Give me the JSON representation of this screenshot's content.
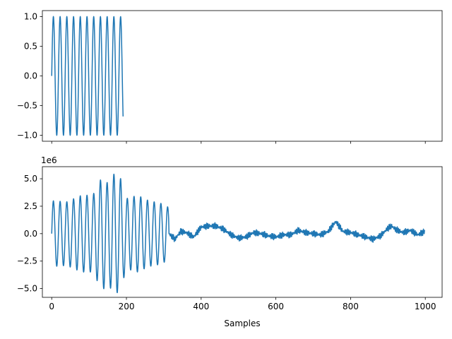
{
  "chart_data": [
    {
      "type": "line",
      "title": "",
      "xlabel": "",
      "ylabel": "",
      "xlim": [
        -25,
        1045
      ],
      "ylim": [
        -1.1,
        1.1
      ],
      "xticks": [
        0,
        200,
        400,
        600,
        800,
        1000
      ],
      "show_xtick_labels": false,
      "yticks": [
        -1.0,
        -0.5,
        0.0,
        0.5,
        1.0
      ],
      "ytick_labels": [
        "−1.0",
        "−0.5",
        "0.0",
        "0.5",
        "1.0"
      ],
      "grid": false,
      "color": "#1f77b4",
      "series": [
        {
          "signal": "sin(2*pi*0.0556*n)",
          "frequency_cycles_per_sample": 0.0556,
          "n_start": 0,
          "n_end": 191,
          "amplitude": 1.0
        }
      ]
    },
    {
      "type": "line",
      "title": "",
      "xlabel": "Samples",
      "ylabel": "",
      "offset_label": "1e6",
      "xlim": [
        -25,
        1045
      ],
      "ylim": [
        -5.8,
        6.1
      ],
      "xticks": [
        0,
        200,
        400,
        600,
        800,
        1000
      ],
      "xtick_labels": [
        "0",
        "200",
        "400",
        "600",
        "800",
        "1000"
      ],
      "yticks": [
        -5.0,
        -2.5,
        0.0,
        2.5,
        5.0
      ],
      "ytick_labels": [
        "−5.0",
        "−2.5",
        "0.0",
        "2.5",
        "5.0"
      ],
      "grid": false,
      "color": "#1f77b4",
      "series": [
        {
          "oscillation_frequency_cycles_per_sample": 0.0556,
          "oscillation_end_sample": 313,
          "envelope": [
            [
              0,
              3.0
            ],
            [
              40,
              2.9
            ],
            [
              80,
              3.5
            ],
            [
              110,
              3.5
            ],
            [
              135,
              5.2
            ],
            [
              150,
              4.6
            ],
            [
              170,
              5.6
            ],
            [
              185,
              5.0
            ],
            [
              200,
              3.2
            ],
            [
              230,
              3.5
            ],
            [
              260,
              3.0
            ],
            [
              290,
              2.8
            ],
            [
              313,
              2.4
            ]
          ],
          "noise_segment": [
            [
              313,
              0.0
            ],
            [
              330,
              -0.5
            ],
            [
              345,
              0.2
            ],
            [
              360,
              0.1
            ],
            [
              380,
              -0.3
            ],
            [
              400,
              0.6
            ],
            [
              420,
              0.7
            ],
            [
              440,
              0.7
            ],
            [
              460,
              0.4
            ],
            [
              480,
              -0.1
            ],
            [
              500,
              -0.4
            ],
            [
              520,
              -0.3
            ],
            [
              540,
              0.1
            ],
            [
              560,
              0.0
            ],
            [
              580,
              -0.2
            ],
            [
              600,
              -0.3
            ],
            [
              620,
              -0.1
            ],
            [
              640,
              -0.1
            ],
            [
              660,
              0.3
            ],
            [
              680,
              0.1
            ],
            [
              700,
              0.0
            ],
            [
              720,
              -0.1
            ],
            [
              740,
              0.2
            ],
            [
              760,
              1.1
            ],
            [
              780,
              0.2
            ],
            [
              800,
              0.1
            ],
            [
              820,
              -0.1
            ],
            [
              840,
              -0.3
            ],
            [
              860,
              -0.5
            ],
            [
              880,
              -0.2
            ],
            [
              900,
              0.5
            ],
            [
              910,
              0.7
            ],
            [
              920,
              0.4
            ],
            [
              940,
              0.1
            ],
            [
              960,
              0.3
            ],
            [
              980,
              -0.1
            ],
            [
              998,
              0.2
            ]
          ],
          "noise_amplitude": 0.3
        }
      ]
    }
  ]
}
